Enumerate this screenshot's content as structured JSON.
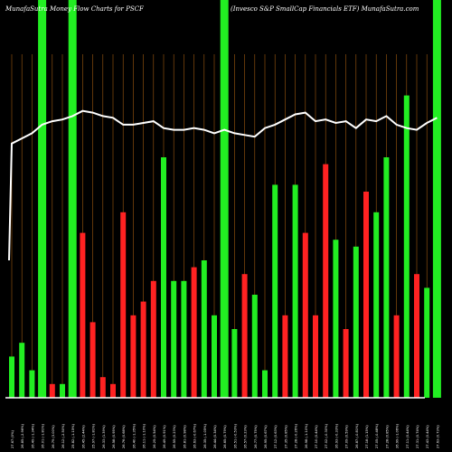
{
  "header": {
    "left": "MunafaSutra  Money Flow  Charts for PSCF",
    "right": "(Invesco  S&P SmallCap Financials ETF) MunafaSutra.com"
  },
  "colors": {
    "background": "#000000",
    "up": "#22ee22",
    "down": "#ff2222",
    "grid": "#a05a10",
    "line": "#ffffff",
    "text": "#ffffff"
  },
  "chart_data": {
    "type": "bar",
    "title": "MunafaSutra  Money Flow  Charts for PSCF",
    "xlabel": "",
    "ylabel": "",
    "grid": true,
    "categories": [
      "27.67 (0%)",
      "26.85 (-2.96%)",
      "26.49 (-1.34%)",
      "26.01 (-1.81%)",
      "26.79 (3.00%)",
      "26.12 (-2.50%)",
      "25.82 (-1.15%)",
      "26.45 (2.44%)",
      "25.97 (-1.81%)",
      "26.33 (1.39%)",
      "26.58 (0.95%)",
      "26.76 (0.68%)",
      "26.40 (-1.35%)",
      "26.11 (-1.10%)",
      "26.25 (0.54%)",
      "26.49 (0.91%)",
      "26.55 (0.23%)",
      "26.81 (0.98%)",
      "26.63 (-0.67%)",
      "26.35 (-1.05%)",
      "26.44 (0.34%)",
      "26.65 (0.79%)",
      "26.51 (-0.53%)",
      "26.57 (0.23%)",
      "26.77 (0.75%)",
      "26.95 (0.67%)",
      "27.12 (0.63%)",
      "27.35 (0.85%)",
      "27.28 (-0.26%)",
      "26.98 (-1.10%)",
      "27.10 (0.44%)",
      "27.02 (-0.30%)",
      "26.93 (-0.33%)",
      "27.09 (0.59%)",
      "26.87 (-0.81%)",
      "27.18 (1.15%)",
      "27.05 (-0.48%)",
      "27.28 (0.85%)",
      "26.99 (-1.06%)",
      "27.11 (0.44%)",
      "27.31 (0.74%)",
      "27.43 (0.44%)",
      "27.63 (0.73%)"
    ],
    "values": [
      30,
      40,
      20,
      140,
      10,
      10,
      140,
      120,
      55,
      15,
      10,
      135,
      60,
      70,
      85,
      175,
      85,
      85,
      95,
      100,
      60,
      180,
      50,
      90,
      75,
      20,
      155,
      60,
      155,
      120,
      60,
      170,
      115,
      50,
      110,
      150,
      135,
      175,
      60,
      220,
      90,
      80,
      200
    ],
    "directions": [
      "up",
      "up",
      "up",
      "up",
      "down",
      "up",
      "up",
      "down",
      "down",
      "down",
      "down",
      "down",
      "down",
      "down",
      "down",
      "up",
      "up",
      "up",
      "down",
      "up",
      "up",
      "up",
      "up",
      "down",
      "up",
      "up",
      "up",
      "down",
      "up",
      "down",
      "down",
      "down",
      "up",
      "down",
      "up",
      "down",
      "up",
      "up",
      "down",
      "up",
      "down",
      "up",
      "up"
    ],
    "highlight": [
      false,
      false,
      false,
      true,
      false,
      false,
      true,
      false,
      false,
      false,
      false,
      false,
      false,
      false,
      false,
      false,
      false,
      false,
      false,
      false,
      false,
      true,
      false,
      false,
      false,
      false,
      false,
      false,
      false,
      false,
      false,
      false,
      false,
      false,
      false,
      false,
      false,
      false,
      false,
      false,
      false,
      false,
      true
    ],
    "ylim": [
      0,
      250
    ],
    "series": [
      {
        "type": "line",
        "values": [
          27.4,
          27.55,
          27.7,
          27.95,
          28.05,
          28.1,
          28.2,
          28.35,
          28.3,
          28.2,
          28.15,
          27.95,
          27.95,
          28.0,
          28.05,
          27.85,
          27.8,
          27.8,
          27.85,
          27.8,
          27.7,
          27.8,
          27.7,
          27.65,
          27.6,
          27.85,
          27.95,
          28.1,
          28.25,
          28.3,
          28.05,
          28.1,
          28.0,
          28.05,
          27.85,
          28.1,
          28.05,
          28.2,
          27.95,
          27.85,
          27.8,
          28.0,
          28.15
        ],
        "line_start": 24.0,
        "ylim": [
          20,
          30
        ]
      }
    ]
  }
}
